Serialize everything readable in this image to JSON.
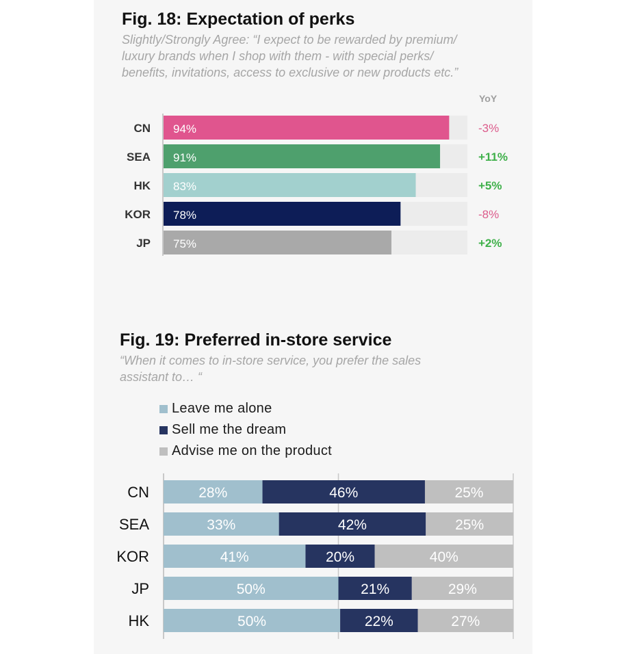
{
  "colors": {
    "panel_bg": "#f6f6f6",
    "track": "#ececec",
    "text": "#111111",
    "subtitle": "#a6a6a6",
    "yoy_neg": "#dc5b8b",
    "yoy_pos": "#3fb04a"
  },
  "fig18": {
    "title": "Fig. 18: Expectation of perks",
    "subtitle": "Slightly/Strongly Agree: “I expect to be rewarded by premium/ luxury brands when I shop with them - with special perks/ benefits, invitations, access to exclusive or new products etc.”",
    "yoy_header": "YoY"
  },
  "fig19": {
    "title": "Fig. 19: Preferred in-store service",
    "subtitle": "“When it comes to in-store service, you prefer the sales assistant to… “"
  },
  "chart_data": [
    {
      "type": "bar",
      "orientation": "horizontal",
      "title": "Fig. 18: Expectation of perks",
      "categories": [
        "CN",
        "SEA",
        "HK",
        "KOR",
        "JP"
      ],
      "values": [
        94,
        91,
        83,
        78,
        75
      ],
      "value_labels": [
        "94%",
        "91%",
        "83%",
        "78%",
        "75%"
      ],
      "bar_colors": [
        "#e0558e",
        "#4ea06d",
        "#a2d0ce",
        "#0d1d57",
        "#a9a9a9"
      ],
      "yoy": [
        "-3%",
        "+11%",
        "+5%",
        "-8%",
        "+2%"
      ],
      "yoy_sign": [
        "neg",
        "pos",
        "pos",
        "neg",
        "pos"
      ],
      "xlim": [
        0,
        100
      ]
    },
    {
      "type": "bar",
      "orientation": "horizontal",
      "stacked": true,
      "title": "Fig. 19: Preferred in-store service",
      "categories": [
        "CN",
        "SEA",
        "KOR",
        "JP",
        "HK"
      ],
      "series": [
        {
          "name": "Leave me alone",
          "color": "#a0bfcd",
          "values": [
            28,
            33,
            41,
            50,
            50
          ]
        },
        {
          "name": "Sell me the dream",
          "color": "#263460",
          "values": [
            46,
            42,
            20,
            21,
            22
          ]
        },
        {
          "name": "Advise me on the product",
          "color": "#bfbfbf",
          "values": [
            25,
            25,
            40,
            29,
            27
          ]
        }
      ],
      "legend": "top-left"
    }
  ]
}
